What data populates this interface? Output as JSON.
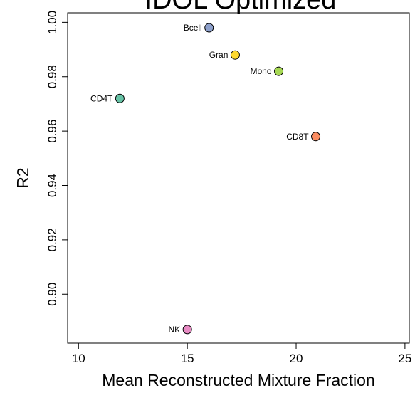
{
  "chart_data": {
    "type": "scatter",
    "title": "IDOL Optimized",
    "xlabel": "Mean Reconstructed Mixture Fraction",
    "ylabel": "R2",
    "xlim": [
      9.5,
      25.2
    ],
    "ylim": [
      0.882,
      1.0035
    ],
    "xticks": [
      10,
      15,
      20,
      25
    ],
    "xtick_labels": [
      "10",
      "15",
      "20",
      "25"
    ],
    "yticks": [
      0.9,
      0.92,
      0.94,
      0.96,
      0.98,
      1.0
    ],
    "ytick_labels": [
      "0.90",
      "0.92",
      "0.94",
      "0.96",
      "0.98",
      "1.00"
    ],
    "grid": false,
    "points": [
      {
        "label": "Bcell",
        "x": 16.0,
        "y": 0.998,
        "color": "#8da0cb"
      },
      {
        "label": "Gran",
        "x": 17.2,
        "y": 0.988,
        "color": "#ffd92f"
      },
      {
        "label": "Mono",
        "x": 19.2,
        "y": 0.982,
        "color": "#a6d854"
      },
      {
        "label": "CD4T",
        "x": 11.9,
        "y": 0.972,
        "color": "#66c2a5"
      },
      {
        "label": "CD8T",
        "x": 20.9,
        "y": 0.958,
        "color": "#fc8d62"
      },
      {
        "label": "NK",
        "x": 15.0,
        "y": 0.887,
        "color": "#e78ac3"
      }
    ]
  }
}
